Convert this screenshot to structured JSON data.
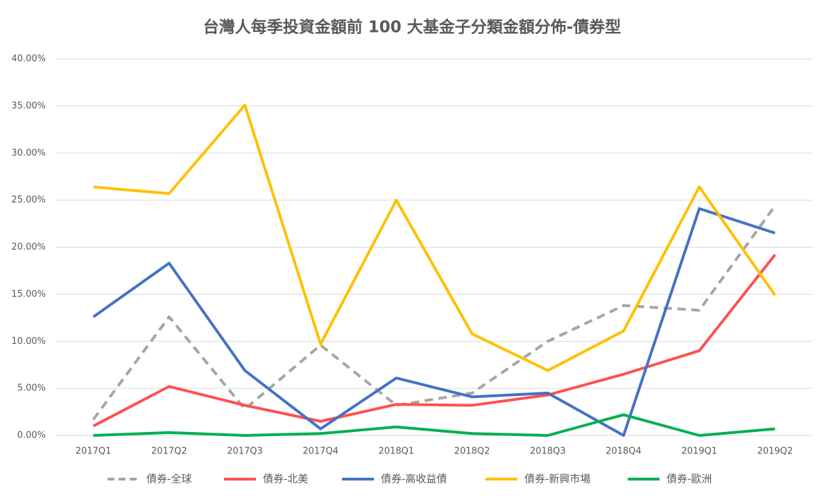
{
  "chart_data": {
    "type": "line",
    "title": "台灣人每季投資金額前 100 大基金子分類金額分佈-債券型",
    "categories": [
      "2017Q1",
      "2017Q2",
      "2017Q3",
      "2017Q4",
      "2018Q1",
      "2018Q2",
      "2018Q3",
      "2018Q4",
      "2019Q1",
      "2019Q2"
    ],
    "ylim": [
      0,
      40
    ],
    "yticks": [
      {
        "value": 0,
        "label": "0.00%"
      },
      {
        "value": 5,
        "label": "5.00%"
      },
      {
        "value": 10,
        "label": "10.00%"
      },
      {
        "value": 15,
        "label": "15.00%"
      },
      {
        "value": 20,
        "label": "20.00%"
      },
      {
        "value": 25,
        "label": "25.00%"
      },
      {
        "value": 30,
        "label": "30.00%"
      },
      {
        "value": 35,
        "label": "35.00%"
      },
      {
        "value": 40,
        "label": "40.00%"
      }
    ],
    "grid": true,
    "legend": "bottom",
    "series": [
      {
        "name": "債券-全球",
        "color": "#a5a5a5",
        "dashed": true,
        "values": [
          1.7,
          12.6,
          2.8,
          9.6,
          3.2,
          4.5,
          10.0,
          13.8,
          13.3,
          24.4
        ]
      },
      {
        "name": "債券-北美",
        "color": "#ff5050",
        "values": [
          1.0,
          5.2,
          3.2,
          1.5,
          3.3,
          3.2,
          4.3,
          6.5,
          9.0,
          19.2
        ]
      },
      {
        "name": "債券-高收益債",
        "color": "#4472c4",
        "values": [
          12.6,
          18.3,
          6.9,
          0.7,
          6.1,
          4.1,
          4.5,
          0,
          24.1,
          21.5
        ]
      },
      {
        "name": "債券-新興市場",
        "color": "#ffc000",
        "values": [
          26.4,
          25.7,
          35.1,
          9.7,
          25.0,
          10.8,
          6.9,
          11.1,
          26.4,
          14.9
        ]
      },
      {
        "name": "債券-歐洲",
        "color": "#00b050",
        "values": [
          0,
          0.3,
          0,
          0.2,
          0.9,
          0.2,
          0,
          2.2,
          0,
          0.7
        ]
      }
    ]
  }
}
